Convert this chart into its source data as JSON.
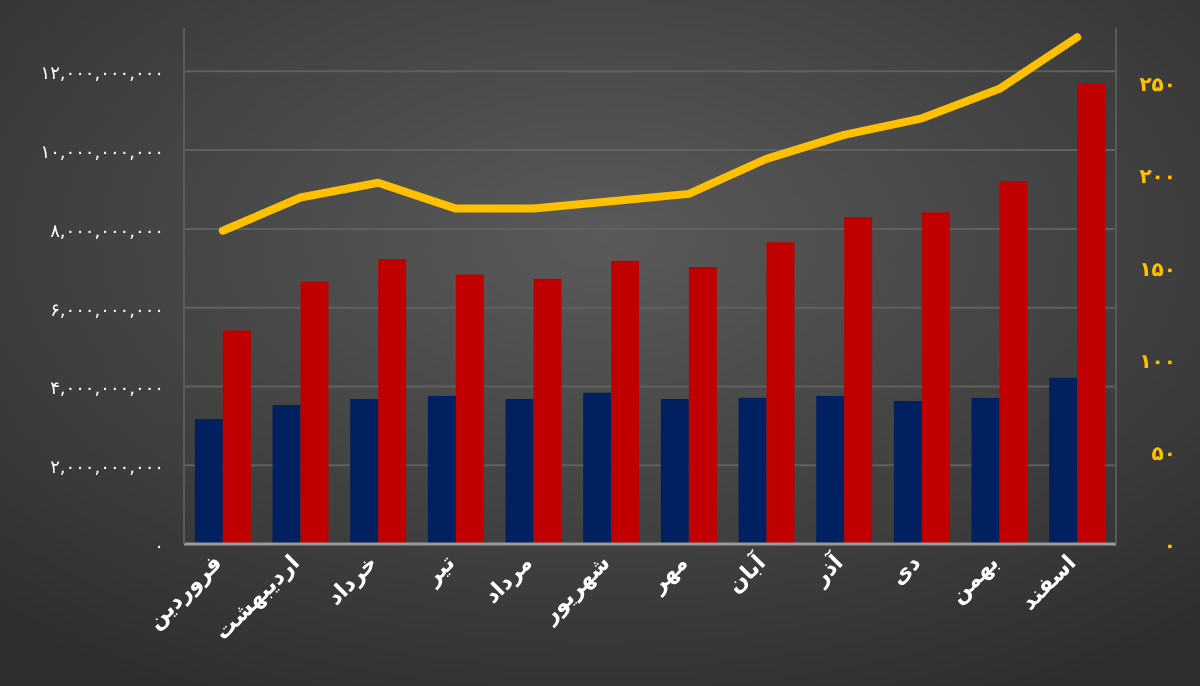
{
  "chart_data": {
    "type": "bar",
    "categories": [
      "فروردین",
      "اردیبهشت",
      "خرداد",
      "تیر",
      "مرداد",
      "شهریور",
      "مهر",
      "آبان",
      "آذر",
      "دی",
      "بهمن",
      "اسفند"
    ],
    "series": [
      {
        "color": "#002060",
        "values": [
          3170000000,
          3530000000,
          3680000000,
          3760000000,
          3680000000,
          3840000000,
          3680000000,
          3710000000,
          3760000000,
          3630000000,
          3710000000,
          4220000000
        ]
      },
      {
        "color": "#c00000",
        "values": [
          5420000000,
          6660000000,
          7230000000,
          6840000000,
          6730000000,
          7190000000,
          7030000000,
          7660000000,
          8300000000,
          8420000000,
          9210000000,
          11690000000
        ]
      },
      {
        "type": "line",
        "axis": "y2",
        "color": "#ffc000",
        "values": [
          170,
          188,
          196,
          182,
          182,
          186,
          190,
          209,
          222,
          231,
          247,
          275
        ]
      }
    ],
    "ylim": [
      0,
      13100000000
    ],
    "yticks": [
      {
        "value": 0,
        "label": "۰"
      },
      {
        "value": 2000000000,
        "label": "۲,۰۰۰,۰۰۰,۰۰۰"
      },
      {
        "value": 4000000000,
        "label": "۴,۰۰۰,۰۰۰,۰۰۰"
      },
      {
        "value": 6000000000,
        "label": "۶,۰۰۰,۰۰۰,۰۰۰"
      },
      {
        "value": 8000000000,
        "label": "۸,۰۰۰,۰۰۰,۰۰۰"
      },
      {
        "value": 10000000000,
        "label": "۱۰,۰۰۰,۰۰۰,۰۰۰"
      },
      {
        "value": 12000000000,
        "label": "۱۲,۰۰۰,۰۰۰,۰۰۰"
      }
    ],
    "y2lim": [
      0,
      280
    ],
    "y2ticks": [
      {
        "value": 0,
        "label": "۰"
      },
      {
        "value": 50,
        "label": "۵۰"
      },
      {
        "value": 100,
        "label": "۱۰۰"
      },
      {
        "value": 150,
        "label": "۱۵۰"
      },
      {
        "value": 200,
        "label": "۲۰۰"
      },
      {
        "value": 250,
        "label": "۲۵۰"
      }
    ],
    "grid": "y"
  }
}
